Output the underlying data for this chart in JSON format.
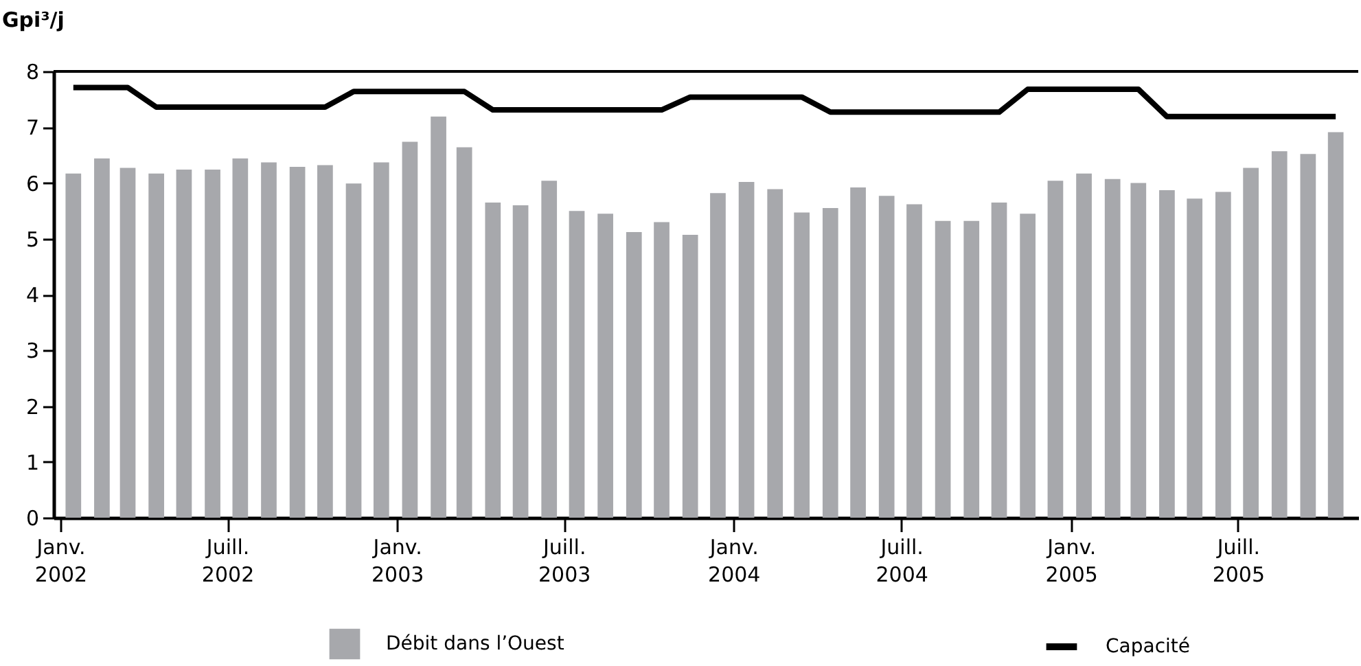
{
  "chart_data": {
    "type": "bar",
    "ylabel": "Gpi³/j",
    "x": [
      "2002-01-15",
      "2002-02-15",
      "2002-03-15",
      "2002-04-15",
      "2002-05-15",
      "2002-06-15",
      "2002-07-15",
      "2002-08-15",
      "2002-09-15",
      "2002-10-15",
      "2002-11-15",
      "2002-12-15",
      "2003-01-15",
      "2003-02-15",
      "2003-03-15",
      "2003-04-15",
      "2003-05-15",
      "2003-06-15",
      "2003-07-15",
      "2003-08-15",
      "2003-09-15",
      "2003-10-15",
      "2003-11-15",
      "2003-12-15",
      "2004-01-15",
      "2004-02-15",
      "2004-03-15",
      "2004-04-15",
      "2004-05-15",
      "2004-06-15",
      "2004-07-15",
      "2004-08-15",
      "2004-09-15",
      "2004-10-15",
      "2004-11-15",
      "2004-12-15",
      "2005-01-15",
      "2005-02-15",
      "2005-03-15",
      "2005-04-15",
      "2005-05-15",
      "2005-06-15",
      "2005-07-15",
      "2005-08-15",
      "2005-09-15",
      "2005-10-15"
    ],
    "series": [
      {
        "name": "Débit dans l’Ouest",
        "color": "#a7a8ac",
        "values": [
          6.17,
          6.44,
          6.27,
          6.17,
          6.24,
          6.24,
          6.44,
          6.37,
          6.29,
          6.32,
          5.99,
          6.37,
          6.74,
          7.19,
          6.64,
          5.65,
          5.6,
          6.04,
          5.5,
          5.45,
          5.12,
          5.3,
          5.07,
          5.82,
          6.02,
          5.89,
          5.47,
          5.55,
          5.92,
          5.77,
          5.62,
          5.32,
          5.32,
          5.65,
          5.45,
          6.04,
          6.17,
          6.07,
          6.0,
          5.87,
          5.72,
          5.84,
          6.27,
          6.57,
          6.52,
          6.91
        ]
      },
      {
        "name": "Capacité",
        "type": "line",
        "color": "#000000",
        "values": [
          7.71,
          7.71,
          7.71,
          7.36,
          7.36,
          7.36,
          7.36,
          7.36,
          7.36,
          7.36,
          7.64,
          7.64,
          7.64,
          7.64,
          7.64,
          7.31,
          7.31,
          7.31,
          7.31,
          7.31,
          7.31,
          7.31,
          7.54,
          7.54,
          7.54,
          7.54,
          7.54,
          7.27,
          7.27,
          7.27,
          7.27,
          7.27,
          7.27,
          7.27,
          7.68,
          7.68,
          7.68,
          7.68,
          7.68,
          7.19,
          7.19,
          7.19,
          7.19,
          7.19,
          7.19,
          7.19
        ]
      }
    ],
    "xlim": [
      "2002-01",
      "2005-11"
    ],
    "xticks": [
      {
        "value": "2002-01",
        "label": "Janv. 2002"
      },
      {
        "value": "2002-07",
        "label": "Juill. 2002"
      },
      {
        "value": "2003-01",
        "label": "Janv. 2003"
      },
      {
        "value": "2003-07",
        "label": "Juill. 2003"
      },
      {
        "value": "2004-01",
        "label": "Janv. 2004"
      },
      {
        "value": "2004-07",
        "label": "Juill. 2004"
      },
      {
        "value": "2005-01",
        "label": "Janv. 2005"
      },
      {
        "value": "2005-07",
        "label": "Juill. 2005"
      }
    ],
    "ylim": [
      0,
      8
    ],
    "yticks": [
      0,
      1,
      2,
      3,
      4,
      5,
      6,
      7,
      8
    ],
    "legend": "bottom",
    "line_style": "solid",
    "marker": "none"
  }
}
